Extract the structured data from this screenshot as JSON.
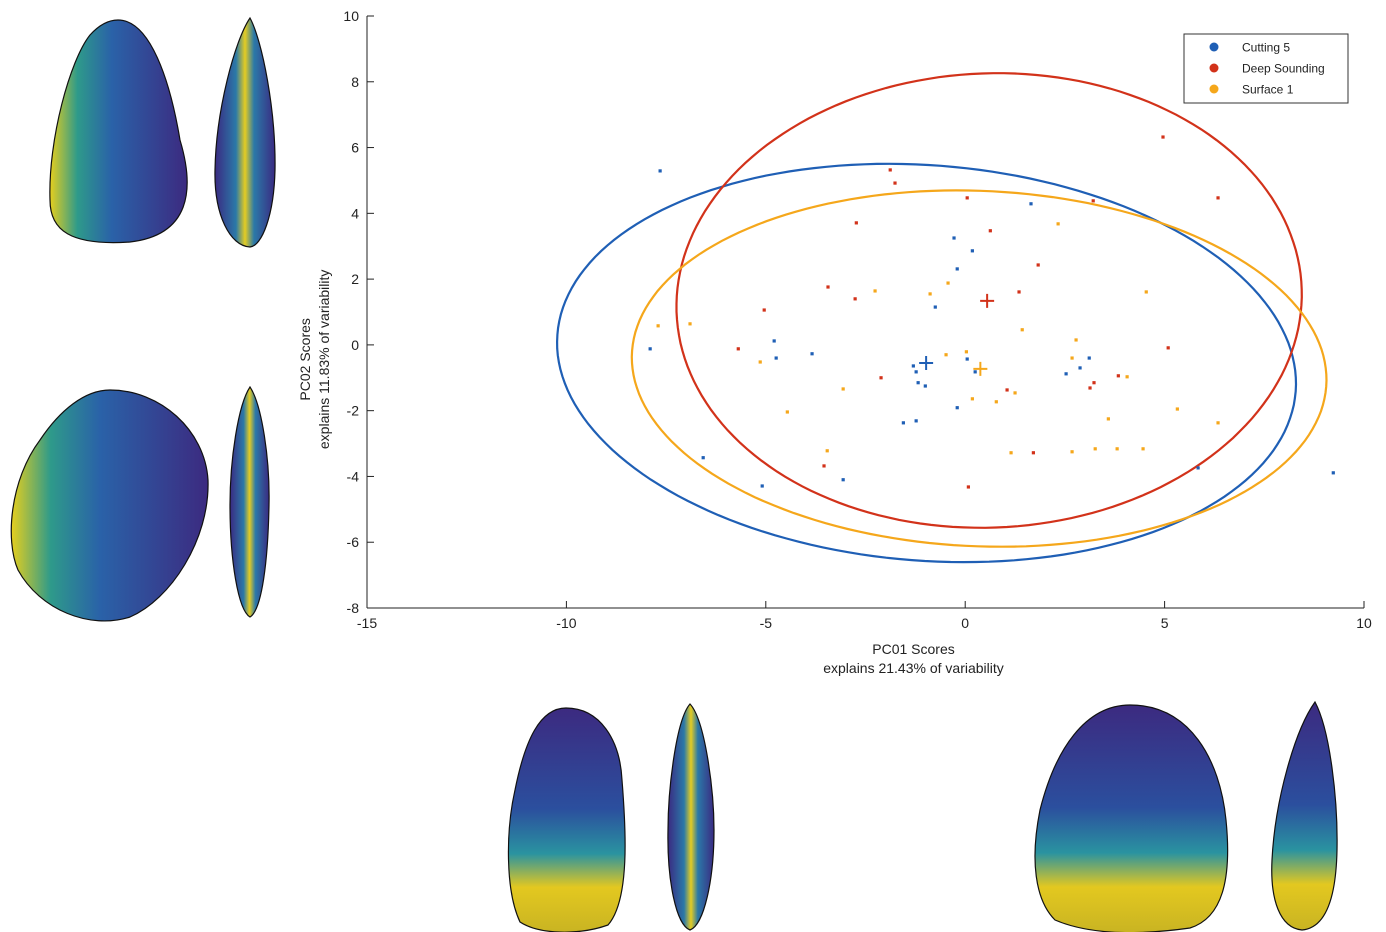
{
  "chart_data": {
    "type": "scatter",
    "xlabel": [
      "PC01 Scores",
      "explains 21.43% of variability"
    ],
    "ylabel": [
      "PC02 Scores",
      "explains 11.83% of variability"
    ],
    "xlim": [
      -15,
      10
    ],
    "xticks": [
      -15,
      -10,
      -5,
      0,
      5,
      10
    ],
    "ylim": [
      -8,
      10
    ],
    "yticks": [
      -8,
      -6,
      -4,
      -2,
      0,
      2,
      4,
      6,
      8,
      10
    ],
    "legend": "top-right",
    "series": [
      {
        "name": "Cutting 5",
        "color": "#1f5fb5",
        "x": [
          -7.65,
          -7.9,
          -4.79,
          -4.74,
          -3.84,
          -6.57,
          -5.09,
          -3.06,
          -0.28,
          0.18,
          -0.2,
          -0.75,
          1.65,
          -1.3,
          -1.23,
          -1.18,
          -1.0,
          0.05,
          0.25,
          -0.2,
          -1.55,
          -1.23,
          2.53,
          2.88,
          3.11,
          5.84,
          9.23
        ],
        "y": [
          5.29,
          -0.12,
          0.12,
          -0.4,
          -0.27,
          -3.43,
          -4.29,
          -4.1,
          3.25,
          2.86,
          2.31,
          1.15,
          4.29,
          -0.64,
          -0.82,
          -1.15,
          -1.25,
          -0.43,
          -0.82,
          -1.91,
          -2.37,
          -2.31,
          -0.88,
          -0.7,
          -0.4,
          -3.74,
          -3.89
        ],
        "centroid": [
          -0.98,
          -0.55
        ],
        "ellipse": {
          "cx": -0.97,
          "cy": -0.55,
          "rx": 9.3,
          "ry": 6.0,
          "angle": -6.6
        }
      },
      {
        "name": "Deep Sounding",
        "color": "#d2321a",
        "x": [
          -1.88,
          -1.76,
          -2.73,
          -3.44,
          -2.76,
          -5.04,
          -5.69,
          -3.54,
          -2.11,
          0.05,
          0.63,
          1.83,
          1.35,
          3.21,
          4.96,
          6.34,
          5.09,
          3.84,
          3.23,
          3.13,
          1.05,
          1.71,
          0.08
        ],
        "y": [
          5.32,
          4.92,
          3.71,
          1.76,
          1.4,
          1.06,
          -0.12,
          -3.68,
          -1.0,
          4.47,
          3.47,
          2.43,
          1.61,
          4.38,
          6.32,
          4.47,
          -0.09,
          -0.94,
          -1.15,
          -1.31,
          -1.37,
          -3.28,
          -4.32
        ],
        "centroid": [
          0.55,
          1.34
        ],
        "ellipse": {
          "cx": 0.6,
          "cy": 1.35,
          "rx": 7.85,
          "ry": 6.9,
          "angle": 6
        }
      },
      {
        "name": "Surface 1",
        "color": "#f5a71b",
        "x": [
          -7.7,
          -6.9,
          -5.14,
          -4.46,
          -3.06,
          -3.46,
          -2.26,
          -0.88,
          -0.43,
          0.03,
          -0.48,
          0.18,
          0.78,
          1.25,
          1.43,
          2.33,
          2.68,
          2.78,
          3.59,
          4.06,
          4.54,
          5.32,
          6.34,
          2.68,
          3.26,
          3.81,
          4.46,
          1.15
        ],
        "y": [
          0.58,
          0.64,
          -0.52,
          -2.04,
          -1.34,
          -3.22,
          1.64,
          1.55,
          1.88,
          -0.21,
          -0.3,
          -1.64,
          -1.73,
          -1.46,
          0.46,
          3.68,
          -0.4,
          0.15,
          -2.25,
          -0.97,
          1.61,
          -1.95,
          -2.37,
          -3.25,
          -3.16,
          -3.16,
          -3.16,
          -3.28
        ],
        "centroid": [
          0.38,
          -0.73
        ],
        "ellipse": {
          "cx": 0.35,
          "cy": -0.72,
          "rx": 8.72,
          "ry": 5.4,
          "angle": -3.6
        }
      }
    ]
  }
}
